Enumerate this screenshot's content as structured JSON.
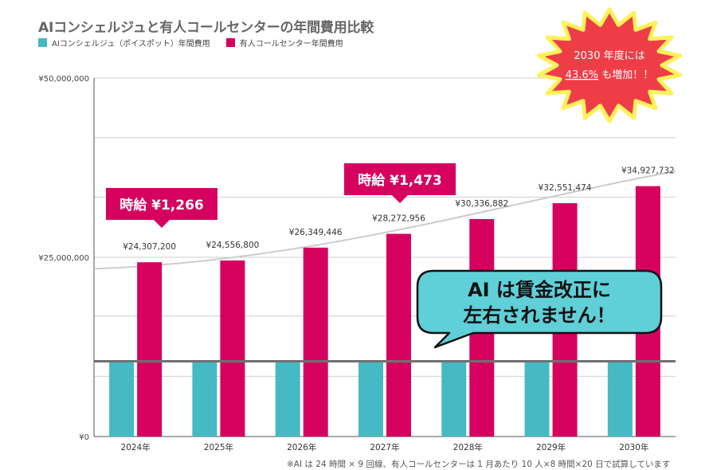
{
  "chart_data": {
    "type": "bar",
    "title": "AIコンシェルジュと有人コールセンターの年間費用比較",
    "categories": [
      "2024年",
      "2025年",
      "2026年",
      "2027年",
      "2028年",
      "2029年",
      "2030年"
    ],
    "series": [
      {
        "name": "AIコンシェルジュ（ポイスポット）年間費用",
        "color": "#45b9c4",
        "values": [
          10500000,
          10500000,
          10500000,
          10500000,
          10500000,
          10500000,
          10500000
        ]
      },
      {
        "name": "有人コールセンター年間費用",
        "color": "#d6005f",
        "values": [
          24307200,
          24556800,
          26349446,
          28272956,
          30336882,
          32551474,
          34927732
        ],
        "labels": [
          "¥24,307,200",
          "¥24,556,800",
          "¥26,349,446",
          "¥28,272,956",
          "¥30,336,882",
          "¥32,551,474",
          "¥34,927,732"
        ]
      }
    ],
    "ylim": [
      0,
      50000000
    ],
    "yticks": [
      {
        "value": 0,
        "label": "¥0"
      },
      {
        "value": 25000000,
        "label": "¥25,000,000"
      },
      {
        "value": 50000000,
        "label": "¥50,000,000"
      }
    ],
    "gridlines": [
      8400000,
      16800000,
      25000000,
      33400000,
      41700000,
      50000000
    ],
    "reference_line": {
      "value": 10500000,
      "color": "#707070"
    },
    "trend_curve": {
      "color": "#cccccc",
      "start_value": 23400000,
      "end_value": 37000000
    },
    "annotations": {
      "wage_2024": {
        "text": "時給 ¥1,266",
        "category_index": 0
      },
      "wage_2027": {
        "text": "時給 ¥1,473",
        "category_index": 3
      },
      "starburst_line1": "2030 年度には",
      "starburst_pct": "43.6%",
      "starburst_rest": "も増加！！",
      "bubble_line1": "AI は賃金改正に",
      "bubble_line2": "左右されません！"
    },
    "footnote": "※AI は 24 時間 × 9 回線、有人コールセンターは 1 月あたり 10 人×8 時間×20 日で試算しています"
  },
  "style": {
    "accent": "#d6005f",
    "teal": "#45b9c4",
    "burst_fill": "#ef3d47",
    "burst_outline": "#fff15a",
    "bubble_fill": "#5fcfd8"
  }
}
